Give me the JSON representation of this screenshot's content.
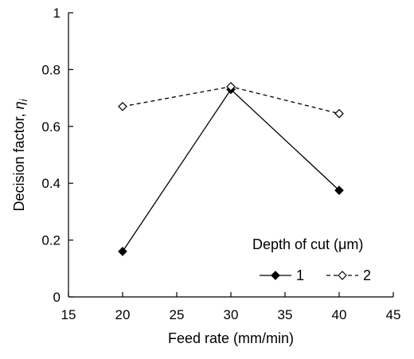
{
  "chart_data": {
    "type": "line",
    "title": "",
    "xlabel": "Feed rate (mm/min)",
    "ylabel": "Decision factor, ",
    "ylabel_symbol": "η",
    "ylabel_subscript": "i",
    "xlim": [
      15,
      45
    ],
    "ylim": [
      0,
      1
    ],
    "xticks": [
      "15",
      "20",
      "25",
      "30",
      "35",
      "40",
      "45"
    ],
    "yticks": [
      "0",
      "0.2",
      "0.4",
      "0.6",
      "0.8",
      "1"
    ],
    "grid": false,
    "legend": {
      "title": "Depth of cut (μm)",
      "placement": "bottom-right"
    },
    "series": [
      {
        "name": "1",
        "style": "solid",
        "marker": "filled-diamond",
        "color": "#000000",
        "points": [
          {
            "x": 20,
            "y": 0.16
          },
          {
            "x": 30,
            "y": 0.73
          },
          {
            "x": 40,
            "y": 0.375
          }
        ]
      },
      {
        "name": "2",
        "style": "dashed",
        "marker": "open-diamond",
        "color": "#000000",
        "points": [
          {
            "x": 20,
            "y": 0.67
          },
          {
            "x": 30,
            "y": 0.74
          },
          {
            "x": 40,
            "y": 0.645
          }
        ]
      }
    ]
  }
}
